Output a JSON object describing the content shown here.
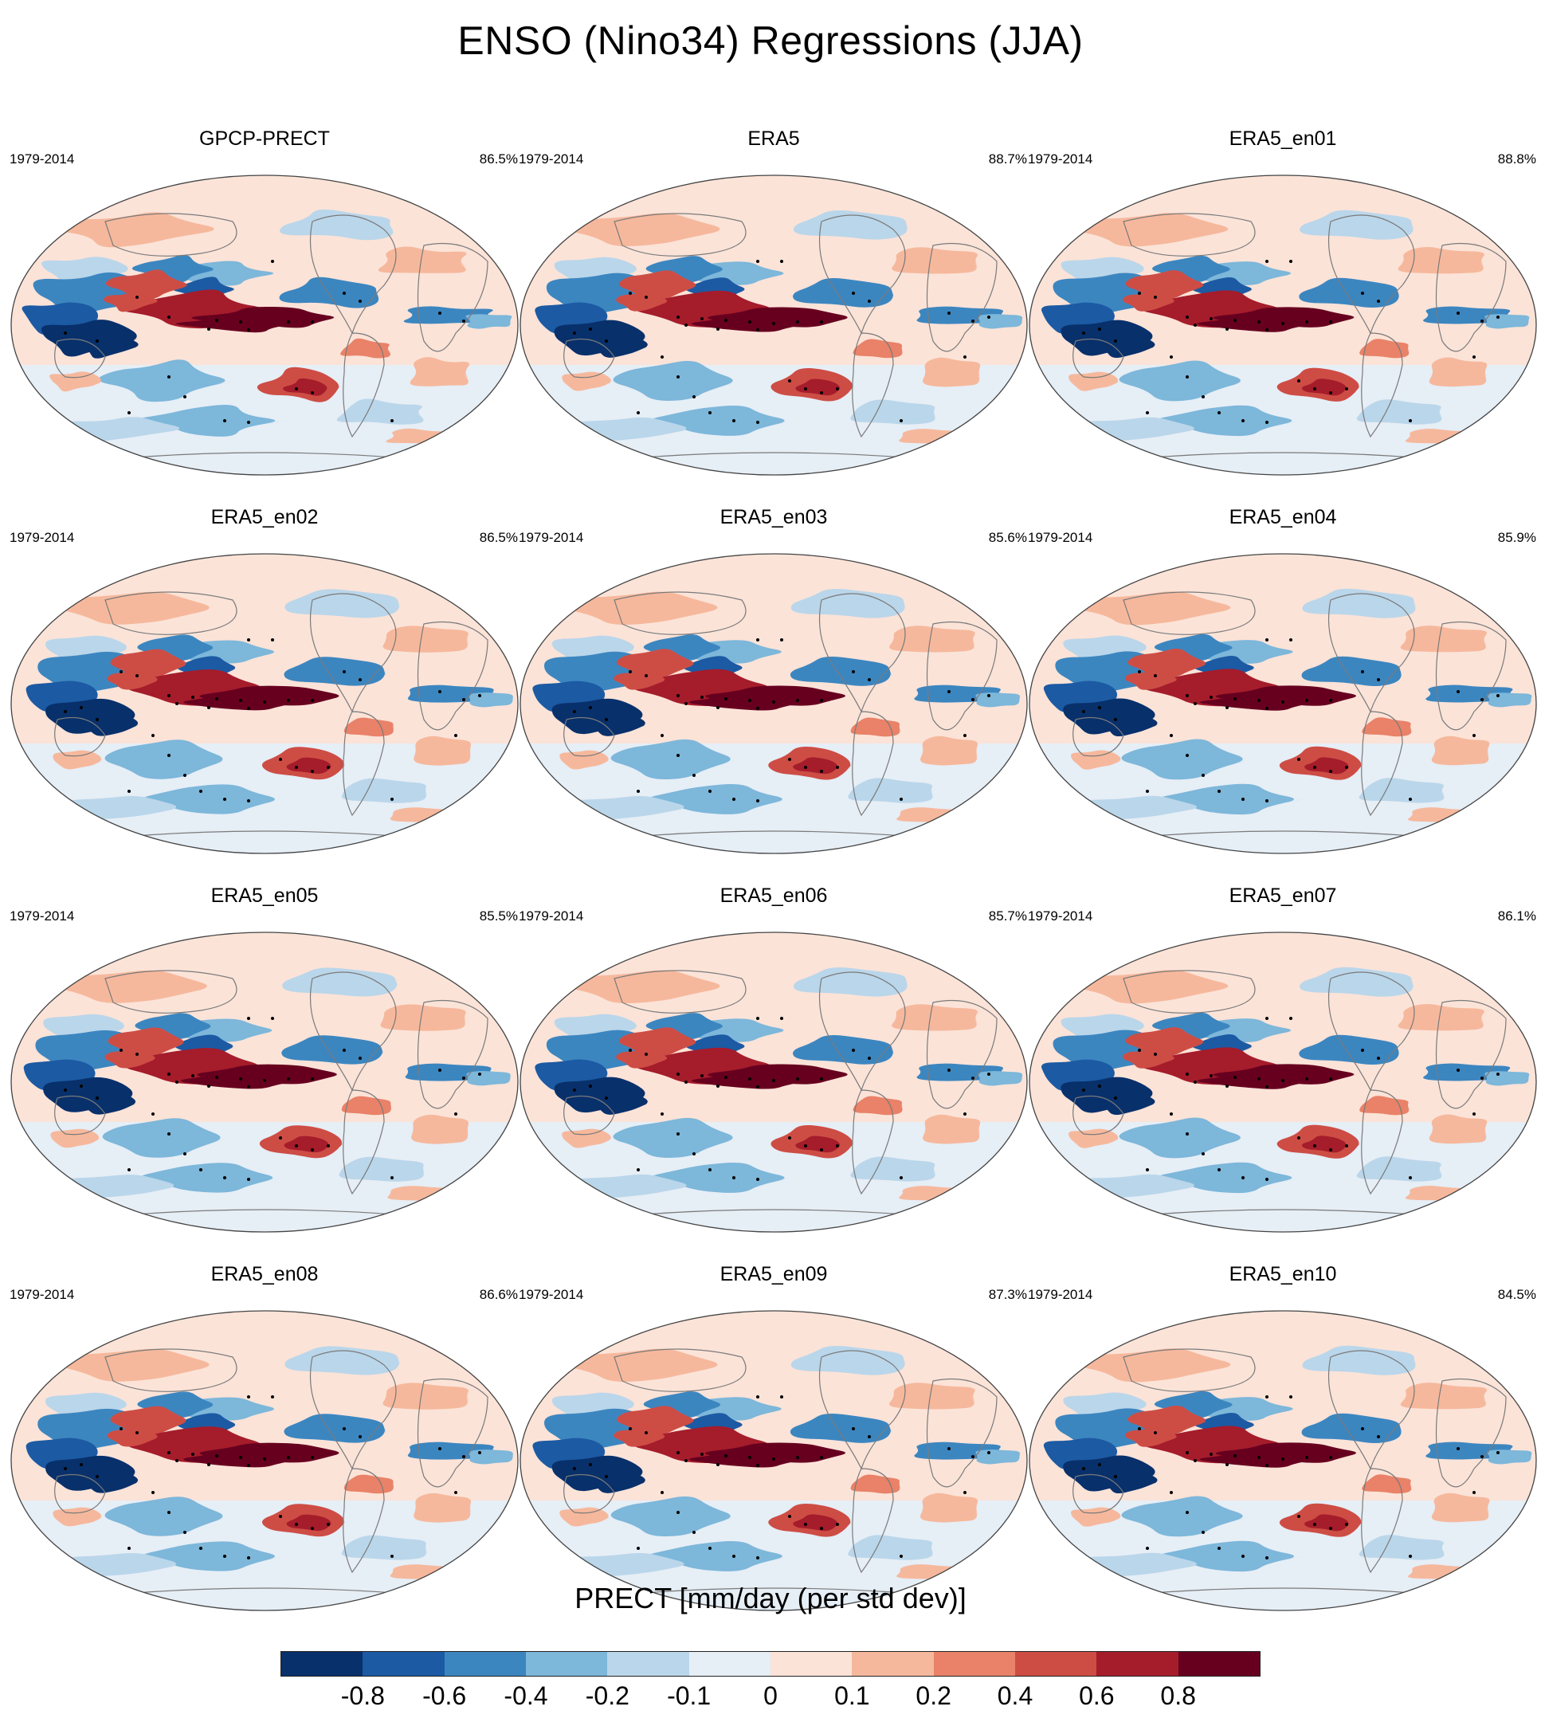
{
  "title": "ENSO (Nino34) Regressions (JJA)",
  "panels": [
    {
      "name": "GPCP-PRECT",
      "years": "1979-2014",
      "percent": "86.5%"
    },
    {
      "name": "ERA5",
      "years": "1979-2014",
      "percent": "88.7%"
    },
    {
      "name": "ERA5_en01",
      "years": "1979-2014",
      "percent": "88.8%"
    },
    {
      "name": "ERA5_en02",
      "years": "1979-2014",
      "percent": "86.5%"
    },
    {
      "name": "ERA5_en03",
      "years": "1979-2014",
      "percent": "85.6%"
    },
    {
      "name": "ERA5_en04",
      "years": "1979-2014",
      "percent": "85.9%"
    },
    {
      "name": "ERA5_en05",
      "years": "1979-2014",
      "percent": "85.5%"
    },
    {
      "name": "ERA5_en06",
      "years": "1979-2014",
      "percent": "85.7%"
    },
    {
      "name": "ERA5_en07",
      "years": "1979-2014",
      "percent": "86.1%"
    },
    {
      "name": "ERA5_en08",
      "years": "1979-2014",
      "percent": "86.6%"
    },
    {
      "name": "ERA5_en09",
      "years": "1979-2014",
      "percent": "87.3%"
    },
    {
      "name": "ERA5_en10",
      "years": "1979-2014",
      "percent": "84.5%"
    }
  ],
  "colorbar": {
    "label": "PRECT [mm/day (per std dev)]",
    "ticks": [
      "-0.8",
      "-0.6",
      "-0.4",
      "-0.2",
      "-0.1",
      "0",
      "0.1",
      "0.2",
      "0.4",
      "0.6",
      "0.8"
    ],
    "colors": [
      "#08306b",
      "#1c5aa3",
      "#3c86c0",
      "#7db7da",
      "#bad6ea",
      "#e6eef6",
      "#fbe3d8",
      "#f6b89c",
      "#e98268",
      "#cd4d45",
      "#a51c2b",
      "#67001f"
    ]
  },
  "colors": {
    "land_outline": "#7a7a7a",
    "border": "#444444",
    "stipple": "#000000"
  }
}
